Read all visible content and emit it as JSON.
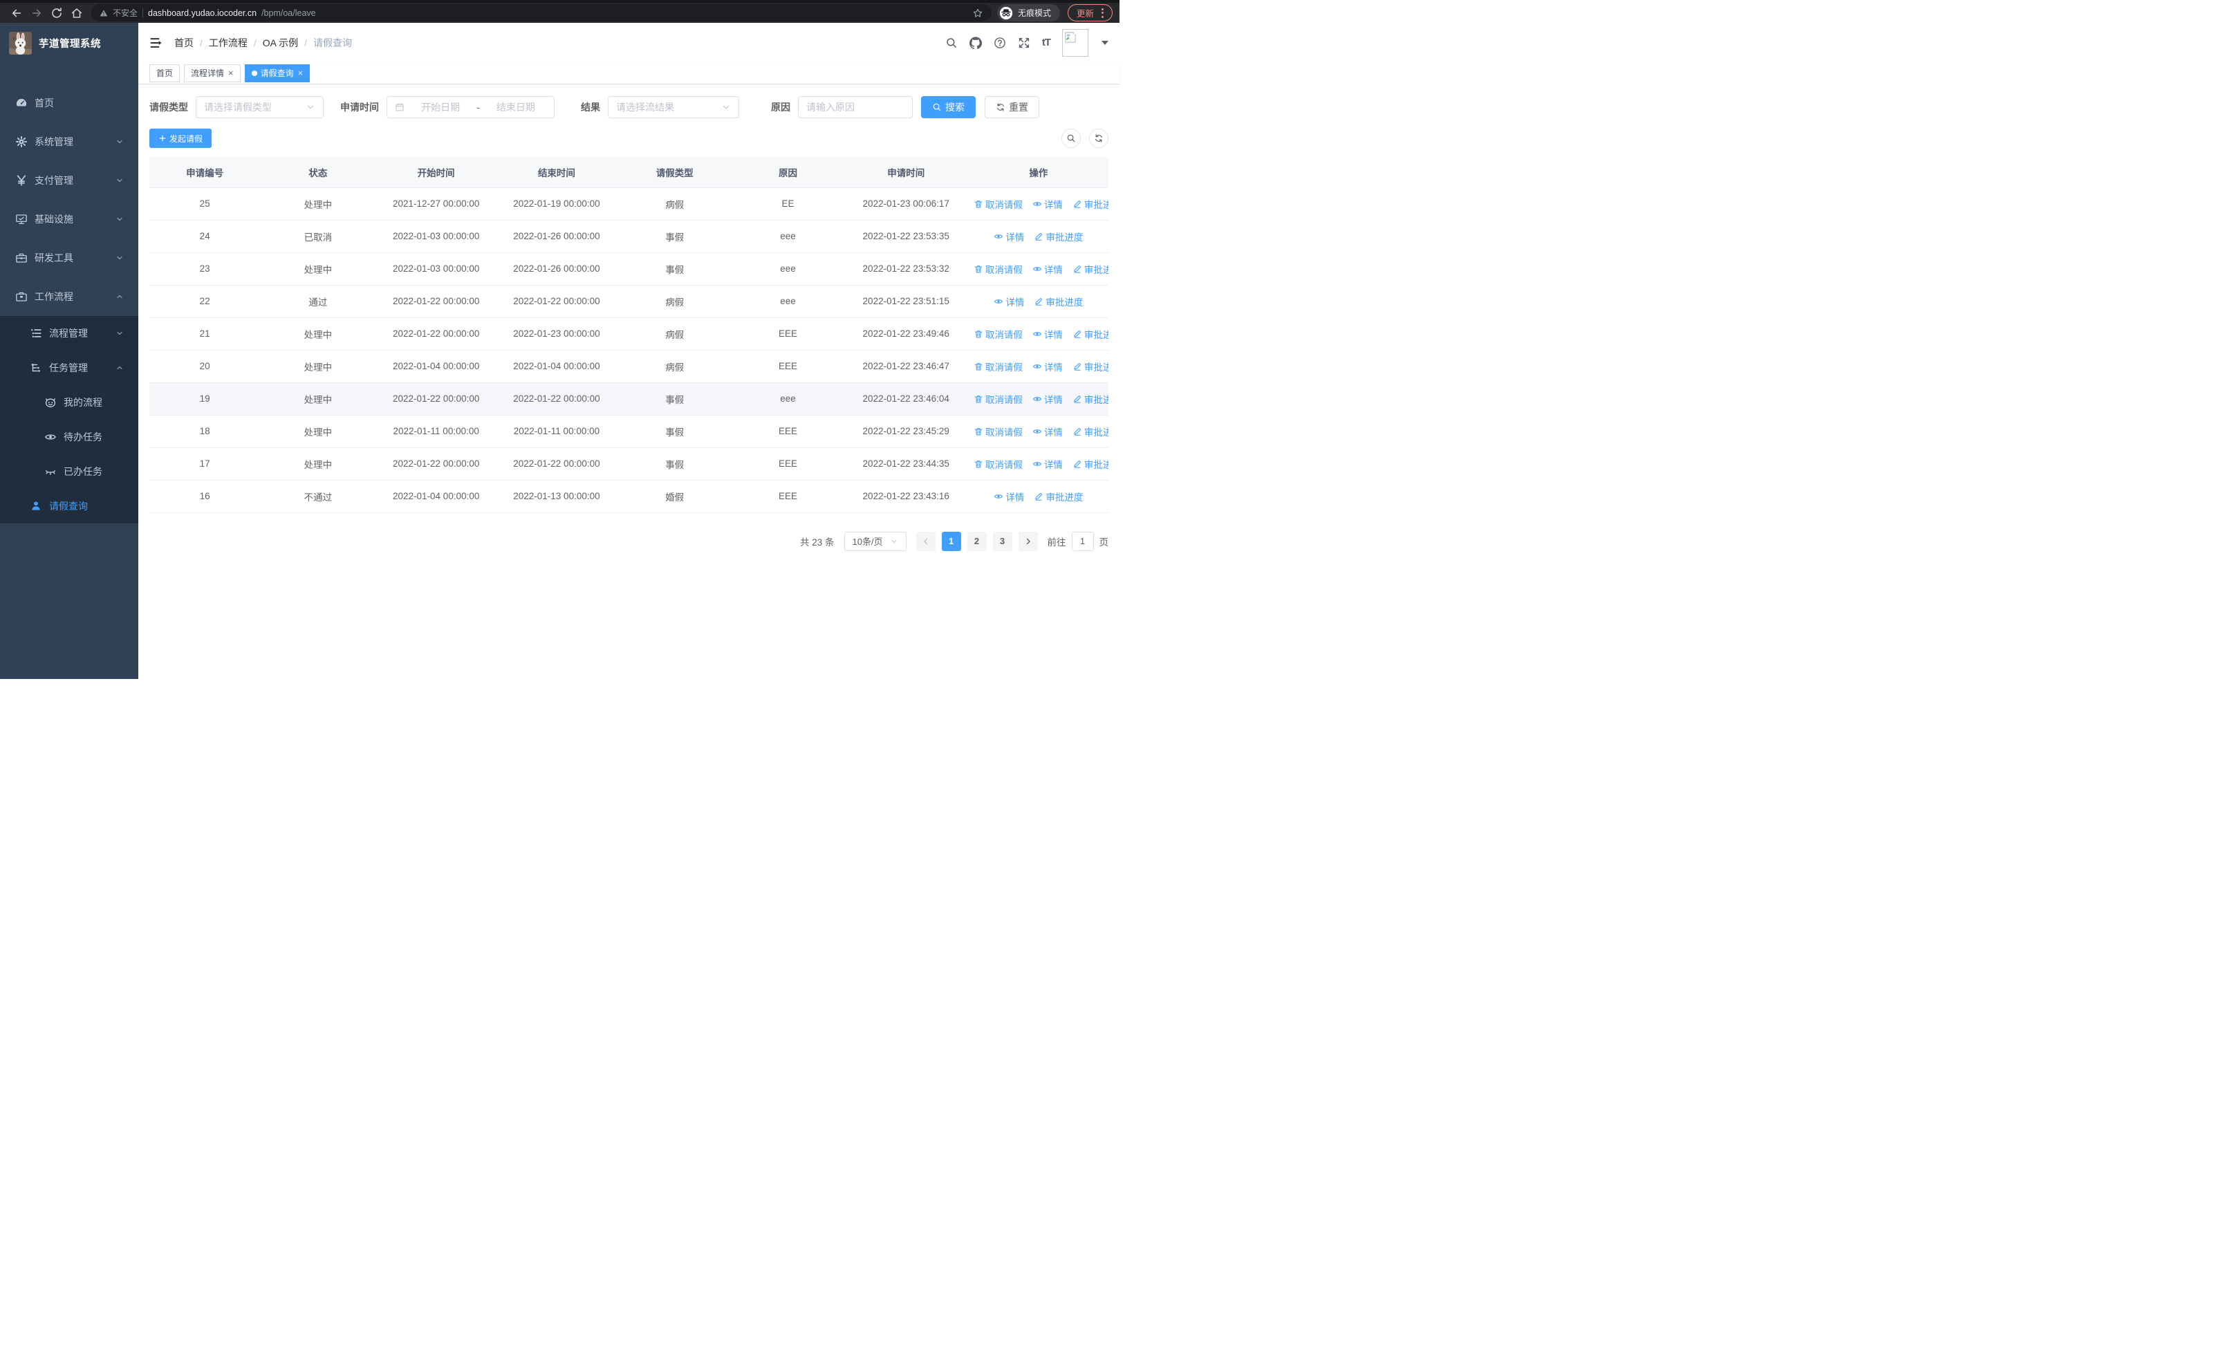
{
  "browser": {
    "security_label": "不安全",
    "url_host": "dashboard.yudao.iocoder.cn",
    "url_path": "/bpm/oa/leave",
    "incognito_label": "无痕模式",
    "update_label": "更新"
  },
  "sidebar": {
    "app_title": "芋道管理系统",
    "menu": [
      {
        "key": "home",
        "label": "首页",
        "icon": "dashboard",
        "level": 0,
        "sub": false,
        "chevron": null,
        "active": false
      },
      {
        "key": "system",
        "label": "系统管理",
        "icon": "gear",
        "level": 0,
        "sub": false,
        "chevron": "down",
        "active": false
      },
      {
        "key": "payment",
        "label": "支付管理",
        "icon": "yen",
        "level": 0,
        "sub": false,
        "chevron": "down",
        "active": false
      },
      {
        "key": "infra",
        "label": "基础设施",
        "icon": "monitor",
        "level": 0,
        "sub": false,
        "chevron": "down",
        "active": false
      },
      {
        "key": "devtools",
        "label": "研发工具",
        "icon": "toolbox",
        "level": 0,
        "sub": false,
        "chevron": "down",
        "active": false
      },
      {
        "key": "workflow",
        "label": "工作流程",
        "icon": "briefcase",
        "level": 0,
        "sub": false,
        "chevron": "up",
        "active": false
      },
      {
        "key": "process-mgmt",
        "label": "流程管理",
        "icon": "listtree",
        "level": 1,
        "sub": true,
        "chevron": "down",
        "active": false
      },
      {
        "key": "task-mgmt",
        "label": "任务管理",
        "icon": "flow",
        "level": 1,
        "sub": true,
        "chevron": "up",
        "active": false
      },
      {
        "key": "my-process",
        "label": "我的流程",
        "icon": "face",
        "level": 2,
        "sub": true,
        "chevron": null,
        "active": false
      },
      {
        "key": "todo-tasks",
        "label": "待办任务",
        "icon": "eye",
        "level": 2,
        "sub": true,
        "chevron": null,
        "active": false
      },
      {
        "key": "done-tasks",
        "label": "已办任务",
        "icon": "eyeclosed",
        "level": 2,
        "sub": true,
        "chevron": null,
        "active": false
      },
      {
        "key": "leave-query",
        "label": "请假查询",
        "icon": "user",
        "level": 1,
        "sub": true,
        "chevron": null,
        "active": true
      }
    ]
  },
  "header": {
    "breadcrumb": [
      "首页",
      "工作流程",
      "OA 示例",
      "请假查询"
    ]
  },
  "tabs": [
    {
      "label": "首页",
      "closable": false,
      "active": false
    },
    {
      "label": "流程详情",
      "closable": true,
      "active": false
    },
    {
      "label": "请假查询",
      "closable": true,
      "active": true
    }
  ],
  "filters": {
    "leave_type": {
      "label": "请假类型",
      "placeholder": "请选择请假类型"
    },
    "apply_time": {
      "label": "申请时间",
      "start_placeholder": "开始日期",
      "separator": "-",
      "end_placeholder": "结束日期"
    },
    "result": {
      "label": "结果",
      "placeholder": "请选择流结果"
    },
    "reason": {
      "label": "原因",
      "placeholder": "请输入原因"
    },
    "search_label": "搜索",
    "reset_label": "重置"
  },
  "toolbar": {
    "create_label": "发起请假"
  },
  "table": {
    "columns": [
      "申请编号",
      "状态",
      "开始时间",
      "结束时间",
      "请假类型",
      "原因",
      "申请时间",
      "操作"
    ],
    "col_widths": [
      "11.5%",
      "12%",
      "12.5%",
      "12.5%",
      "12%",
      "11.5%",
      "13%",
      "14.5%"
    ],
    "action_labels": {
      "cancel": "取消请假",
      "detail": "详情",
      "progress": "审批进度"
    },
    "rows": [
      {
        "id": "25",
        "status": "处理中",
        "start": "2021-12-27 00:00:00",
        "end": "2022-01-19 00:00:00",
        "type": "病假",
        "reason": "EE",
        "apply_time": "2022-01-23 00:06:17",
        "actions": [
          "cancel",
          "detail",
          "progress"
        ],
        "highlight": false
      },
      {
        "id": "24",
        "status": "已取消",
        "start": "2022-01-03 00:00:00",
        "end": "2022-01-26 00:00:00",
        "type": "事假",
        "reason": "eee",
        "apply_time": "2022-01-22 23:53:35",
        "actions": [
          "detail",
          "progress"
        ],
        "highlight": false
      },
      {
        "id": "23",
        "status": "处理中",
        "start": "2022-01-03 00:00:00",
        "end": "2022-01-26 00:00:00",
        "type": "事假",
        "reason": "eee",
        "apply_time": "2022-01-22 23:53:32",
        "actions": [
          "cancel",
          "detail",
          "progress"
        ],
        "highlight": false
      },
      {
        "id": "22",
        "status": "通过",
        "start": "2022-01-22 00:00:00",
        "end": "2022-01-22 00:00:00",
        "type": "病假",
        "reason": "eee",
        "apply_time": "2022-01-22 23:51:15",
        "actions": [
          "detail",
          "progress"
        ],
        "highlight": false
      },
      {
        "id": "21",
        "status": "处理中",
        "start": "2022-01-22 00:00:00",
        "end": "2022-01-23 00:00:00",
        "type": "病假",
        "reason": "EEE",
        "apply_time": "2022-01-22 23:49:46",
        "actions": [
          "cancel",
          "detail",
          "progress"
        ],
        "highlight": false
      },
      {
        "id": "20",
        "status": "处理中",
        "start": "2022-01-04 00:00:00",
        "end": "2022-01-04 00:00:00",
        "type": "病假",
        "reason": "EEE",
        "apply_time": "2022-01-22 23:46:47",
        "actions": [
          "cancel",
          "detail",
          "progress"
        ],
        "highlight": false
      },
      {
        "id": "19",
        "status": "处理中",
        "start": "2022-01-22 00:00:00",
        "end": "2022-01-22 00:00:00",
        "type": "事假",
        "reason": "eee",
        "apply_time": "2022-01-22 23:46:04",
        "actions": [
          "cancel",
          "detail",
          "progress"
        ],
        "highlight": true
      },
      {
        "id": "18",
        "status": "处理中",
        "start": "2022-01-11 00:00:00",
        "end": "2022-01-11 00:00:00",
        "type": "事假",
        "reason": "EEE",
        "apply_time": "2022-01-22 23:45:29",
        "actions": [
          "cancel",
          "detail",
          "progress"
        ],
        "highlight": false
      },
      {
        "id": "17",
        "status": "处理中",
        "start": "2022-01-22 00:00:00",
        "end": "2022-01-22 00:00:00",
        "type": "事假",
        "reason": "EEE",
        "apply_time": "2022-01-22 23:44:35",
        "actions": [
          "cancel",
          "detail",
          "progress"
        ],
        "highlight": false
      },
      {
        "id": "16",
        "status": "不通过",
        "start": "2022-01-04 00:00:00",
        "end": "2022-01-13 00:00:00",
        "type": "婚假",
        "reason": "EEE",
        "apply_time": "2022-01-22 23:43:16",
        "actions": [
          "detail",
          "progress"
        ],
        "highlight": false
      }
    ]
  },
  "pagination": {
    "total_label": "共 23 条",
    "page_size_label": "10条/页",
    "pages": [
      "1",
      "2",
      "3"
    ],
    "current_page": "1",
    "goto_label": "前往",
    "goto_value": "1",
    "unit_label": "页"
  },
  "colors": {
    "primary": "#409eff",
    "sidebar_bg": "#304156",
    "submenu_bg": "#1f2d3d",
    "update_accent": "#ef8a7f"
  }
}
